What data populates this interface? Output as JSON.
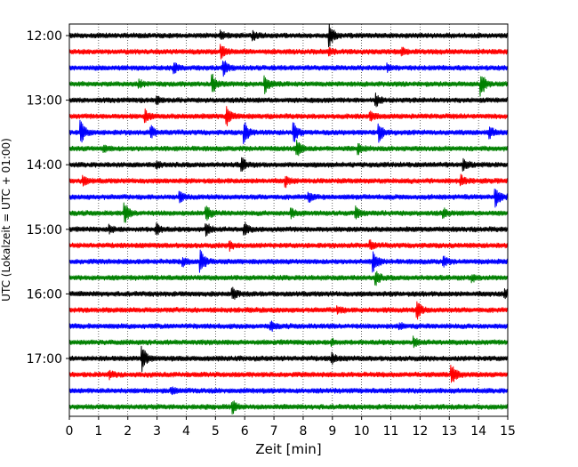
{
  "chart_data": {
    "type": "line",
    "chart_kind": "helicorder",
    "xlabel": "Zeit  [min]",
    "ylabel": "UTC (Lokalzeit = UTC + 01:00)",
    "xlim": [
      0,
      15
    ],
    "x_ticks": [
      "0",
      "1",
      "2",
      "3",
      "4",
      "5",
      "6",
      "7",
      "8",
      "9",
      "10",
      "11",
      "12",
      "13",
      "14",
      "15"
    ],
    "y_tick_labels": [
      "12:00",
      "13:00",
      "14:00",
      "15:00",
      "16:00",
      "17:00"
    ],
    "grid": "vertical dotted at each minute",
    "trace_interval_minutes": 15,
    "trace_color_cycle": [
      "#000000",
      "#ff0000",
      "#0000ff",
      "#008000"
    ],
    "traces": [
      {
        "start": "12:00",
        "events": [
          [
            5.2,
            0.35
          ],
          [
            8.9,
            1.0
          ],
          [
            6.3,
            0.25
          ]
        ]
      },
      {
        "start": "12:15",
        "events": [
          [
            5.2,
            0.6
          ],
          [
            11.4,
            0.3
          ],
          [
            8.9,
            0.3
          ]
        ]
      },
      {
        "start": "12:30",
        "events": [
          [
            3.6,
            0.35
          ],
          [
            5.3,
            0.55
          ],
          [
            10.9,
            0.25
          ]
        ]
      },
      {
        "start": "12:45",
        "events": [
          [
            4.9,
            0.7
          ],
          [
            6.7,
            0.65
          ],
          [
            14.1,
            0.9
          ],
          [
            2.4,
            0.25
          ]
        ]
      },
      {
        "start": "13:00",
        "events": [
          [
            10.5,
            0.45
          ],
          [
            3.0,
            0.25
          ]
        ]
      },
      {
        "start": "13:15",
        "events": [
          [
            2.6,
            0.45
          ],
          [
            5.4,
            0.75
          ],
          [
            10.3,
            0.3
          ]
        ]
      },
      {
        "start": "13:30",
        "events": [
          [
            0.4,
            0.9
          ],
          [
            2.8,
            0.45
          ],
          [
            6.0,
            0.8
          ],
          [
            7.7,
            0.7
          ],
          [
            10.6,
            0.7
          ],
          [
            14.4,
            0.4
          ]
        ]
      },
      {
        "start": "13:45",
        "events": [
          [
            7.8,
            0.6
          ],
          [
            9.9,
            0.35
          ],
          [
            1.2,
            0.2
          ]
        ]
      },
      {
        "start": "14:00",
        "events": [
          [
            5.9,
            0.55
          ],
          [
            13.5,
            0.4
          ],
          [
            3.0,
            0.25
          ]
        ]
      },
      {
        "start": "14:15",
        "events": [
          [
            7.4,
            0.4
          ],
          [
            13.4,
            0.4
          ],
          [
            0.5,
            0.3
          ]
        ]
      },
      {
        "start": "14:30",
        "events": [
          [
            3.8,
            0.3
          ],
          [
            14.6,
            0.8
          ],
          [
            8.2,
            0.3
          ]
        ]
      },
      {
        "start": "14:45",
        "events": [
          [
            1.9,
            0.75
          ],
          [
            4.7,
            0.55
          ],
          [
            9.8,
            0.45
          ],
          [
            7.6,
            0.3
          ],
          [
            12.8,
            0.3
          ]
        ]
      },
      {
        "start": "15:00",
        "events": [
          [
            3.0,
            0.4
          ],
          [
            4.7,
            0.5
          ],
          [
            6.0,
            0.45
          ],
          [
            1.4,
            0.25
          ]
        ]
      },
      {
        "start": "15:15",
        "events": [
          [
            5.5,
            0.3
          ],
          [
            10.3,
            0.3
          ]
        ]
      },
      {
        "start": "15:30",
        "events": [
          [
            4.5,
            1.0
          ],
          [
            10.4,
            0.9
          ],
          [
            12.8,
            0.35
          ],
          [
            3.9,
            0.3
          ]
        ]
      },
      {
        "start": "15:45",
        "events": [
          [
            10.5,
            0.5
          ],
          [
            13.8,
            0.25
          ]
        ]
      },
      {
        "start": "16:00",
        "events": [
          [
            5.6,
            0.4
          ],
          [
            14.9,
            0.35
          ]
        ]
      },
      {
        "start": "16:15",
        "events": [
          [
            11.9,
            0.75
          ],
          [
            9.2,
            0.25
          ]
        ]
      },
      {
        "start": "16:30",
        "events": [
          [
            6.9,
            0.3
          ],
          [
            11.3,
            0.2
          ]
        ]
      },
      {
        "start": "16:45",
        "events": [
          [
            11.8,
            0.35
          ],
          [
            9.0,
            0.2
          ]
        ]
      },
      {
        "start": "17:00",
        "events": [
          [
            2.5,
            1.0
          ],
          [
            9.0,
            0.35
          ]
        ]
      },
      {
        "start": "17:15",
        "events": [
          [
            13.1,
            0.75
          ],
          [
            1.4,
            0.25
          ]
        ]
      },
      {
        "start": "17:30",
        "events": [
          [
            3.5,
            0.2
          ]
        ]
      },
      {
        "start": "17:45",
        "events": [
          [
            5.6,
            0.45
          ]
        ]
      }
    ]
  }
}
